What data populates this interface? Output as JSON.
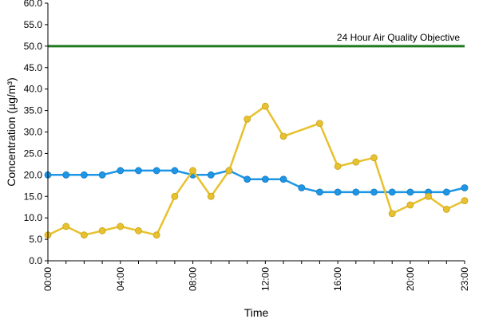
{
  "chart_data": {
    "type": "line",
    "title": "",
    "xlabel": "Time",
    "ylabel": "Concentration (µg/m³)",
    "x": [
      "00:00",
      "01:00",
      "02:00",
      "03:00",
      "04:00",
      "05:00",
      "06:00",
      "07:00",
      "08:00",
      "09:00",
      "10:00",
      "11:00",
      "12:00",
      "13:00",
      "14:00",
      "15:00",
      "16:00",
      "17:00",
      "18:00",
      "19:00",
      "20:00",
      "21:00",
      "22:00",
      "23:00"
    ],
    "x_tick_labels": [
      "00:00",
      "04:00",
      "08:00",
      "12:00",
      "16:00",
      "20:00",
      "23:00"
    ],
    "ylim": [
      0,
      60
    ],
    "y_tick_labels": [
      "0.0",
      "5.0",
      "10.0",
      "15.0",
      "20.0",
      "25.0",
      "30.0",
      "35.0",
      "40.0",
      "45.0",
      "50.0",
      "55.0",
      "60.0"
    ],
    "grid": false,
    "series": [
      {
        "color": "#1E96E6",
        "values": [
          20,
          20,
          20,
          20,
          21,
          21,
          21,
          21,
          20,
          20,
          21,
          19,
          19,
          19,
          17,
          16,
          16,
          16,
          16,
          16,
          16,
          16,
          16,
          17
        ]
      },
      {
        "color": "#E8C12E",
        "values": [
          6,
          8,
          6,
          7,
          8,
          7,
          6,
          15,
          21,
          15,
          21,
          33,
          36,
          29,
          null,
          32,
          22,
          23,
          24,
          11,
          13,
          15,
          12,
          14
        ]
      }
    ],
    "annotations": [
      {
        "type": "hline",
        "y": 50,
        "color": "#1F7A1F",
        "label": "24 Hour Air Quality Objective"
      }
    ]
  }
}
